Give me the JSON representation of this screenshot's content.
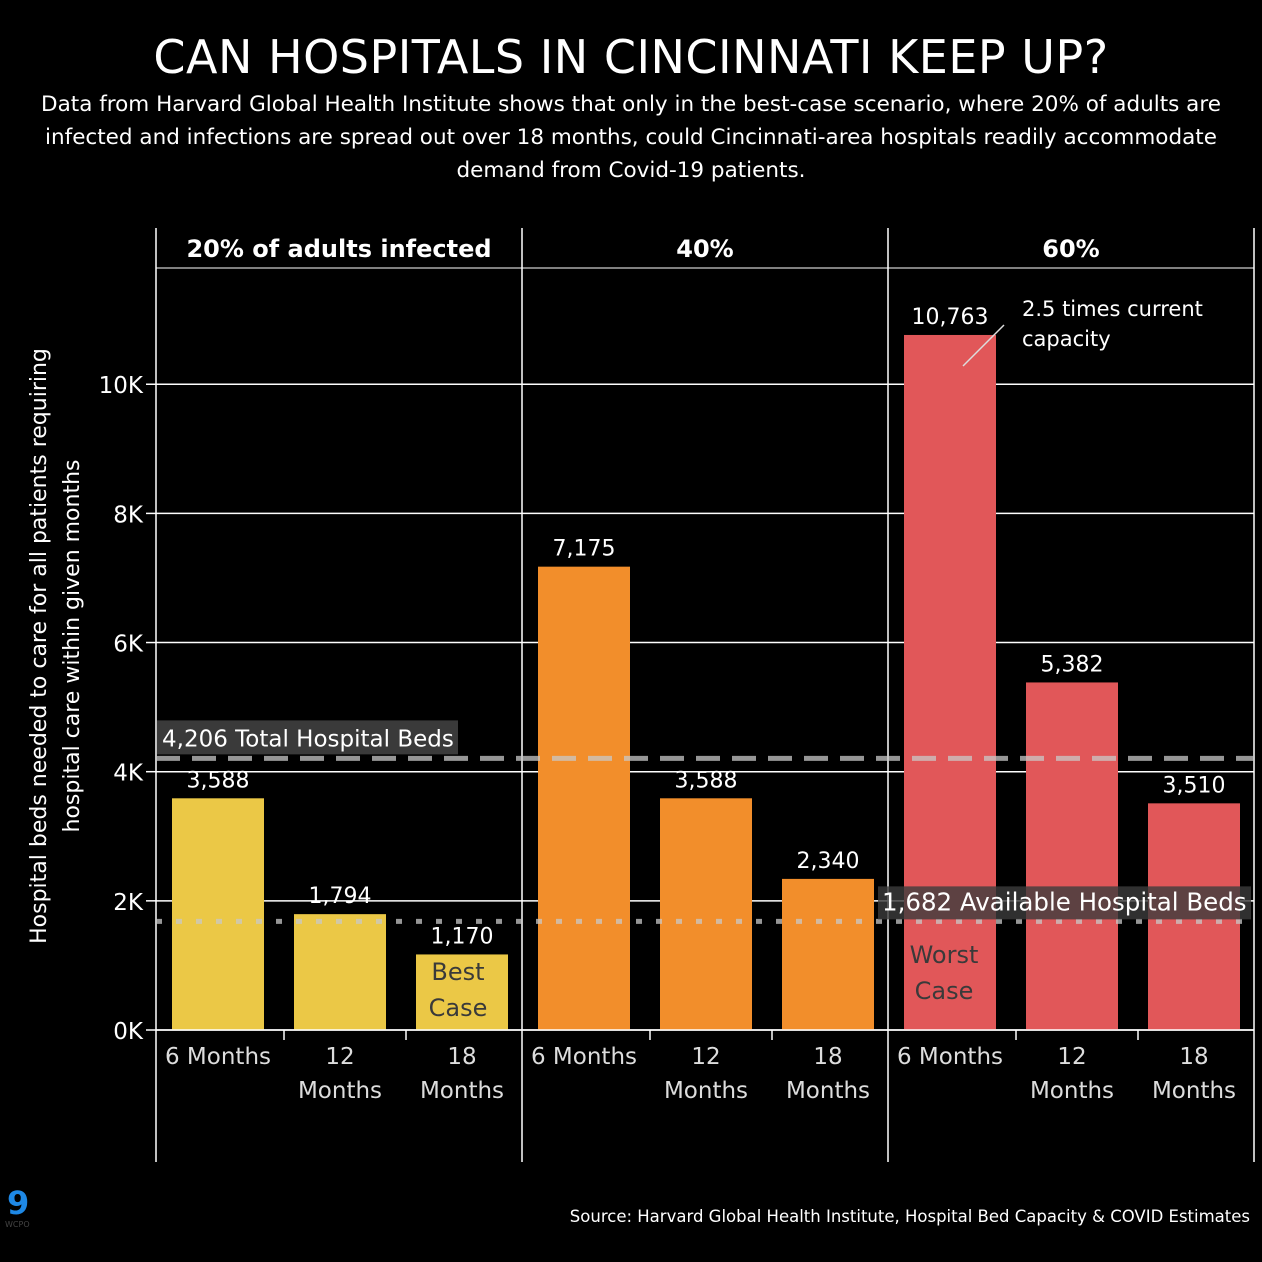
{
  "title": "CAN HOSPITALS IN CINCINNATI KEEP UP?",
  "subtitle": "Data from Harvard Global Health Institute shows that only in the best-case scenario, where 20% of adults are infected and infections are spread out over 18 months, could Cincinnati-area hospitals readily accommodate demand from Covid-19 patients.",
  "source": "Source: Harvard Global Health Institute, Hospital Bed Capacity & COVID Estimates",
  "logo_text": "9 WCPO",
  "chart_data": {
    "type": "bar",
    "ylabel": [
      "Hospital beds needed to care for all patients requiring",
      "hospital care within given months"
    ],
    "ylim": [
      0,
      11800
    ],
    "yticks": [
      0,
      2000,
      4000,
      6000,
      8000,
      10000
    ],
    "ytick_labels": [
      "0K",
      "2K",
      "4K",
      "6K",
      "8K",
      "10K"
    ],
    "grid": true,
    "panels": [
      {
        "label": "20% of adults infected",
        "color": "#EBC846",
        "categories": [
          [
            "6 Months"
          ],
          [
            "12",
            "Months"
          ],
          [
            "18",
            "Months"
          ]
        ],
        "values": [
          3588,
          1794,
          1170
        ],
        "labels": [
          "3,588",
          "1,794",
          "1,170"
        ]
      },
      {
        "label": "40%",
        "color": "#F28E2B",
        "categories": [
          [
            "6 Months"
          ],
          [
            "12",
            "Months"
          ],
          [
            "18",
            "Months"
          ]
        ],
        "values": [
          7175,
          3588,
          2340
        ],
        "labels": [
          "7,175",
          "3,588",
          "2,340"
        ]
      },
      {
        "label": "60%",
        "color": "#E15759",
        "categories": [
          [
            "6 Months"
          ],
          [
            "12",
            "Months"
          ],
          [
            "18",
            "Months"
          ]
        ],
        "values": [
          10763,
          5382,
          3510
        ],
        "labels": [
          "10,763",
          "5,382",
          "3,510"
        ]
      }
    ],
    "reference_lines": [
      {
        "value": 4206,
        "label": "4,206 Total Hospital Beds",
        "style": "dashed"
      },
      {
        "value": 1682,
        "label": "1,682 Available Hospital Beds",
        "style": "dotted"
      }
    ],
    "annotations": [
      {
        "panel": 0,
        "bar": 2,
        "lines": [
          "Best",
          "Case"
        ]
      },
      {
        "panel": 2,
        "bar": 0,
        "lines": [
          "Worst",
          "Case"
        ]
      },
      {
        "panel": 2,
        "bar": 0,
        "lines": [
          "2.5 times current",
          "capacity"
        ],
        "callout": true
      }
    ]
  }
}
